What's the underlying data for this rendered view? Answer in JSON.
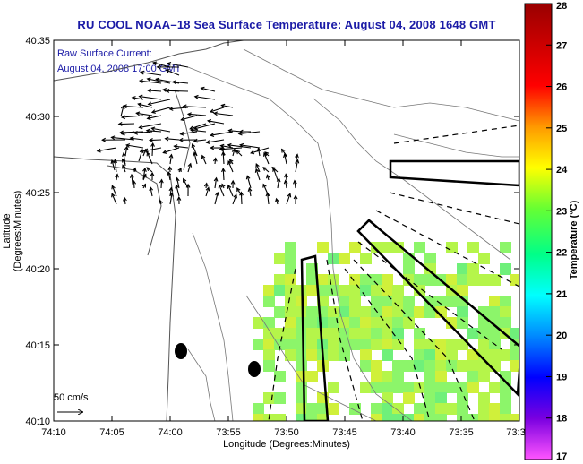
{
  "chart_data": {
    "type": "map",
    "title": "RU COOL  NOAA–18  Sea Surface Temperature:  August 04, 2008 1648 GMT",
    "xlabel": "Longitude (Degrees:Minutes)",
    "ylabel": "Latitude (Degrees:Minutes)",
    "x_ticks": [
      "74:10",
      "74:05",
      "74:00",
      "73:55",
      "73:50",
      "73:45",
      "73:40",
      "73:35",
      "73:3"
    ],
    "y_ticks": [
      "40:35",
      "40:30",
      "40:25",
      "40:20",
      "40:15",
      "40:10"
    ],
    "xlim_minutes_west": [
      70,
      30
    ],
    "ylim_minutes_north": [
      10,
      35
    ],
    "overlay": {
      "line1": "Raw Surface Current:",
      "line2": "August 04, 2008 17:00 GMT"
    },
    "scale_vector_label": "50 cm/s",
    "colorbar": {
      "title": "Temperature (°C)",
      "min": 17,
      "max": 28,
      "ticks": [
        17,
        18,
        19,
        20,
        21,
        22,
        23,
        24,
        25,
        26,
        27,
        28
      ]
    },
    "sst_range_observed_c": [
      22,
      23.5
    ]
  }
}
